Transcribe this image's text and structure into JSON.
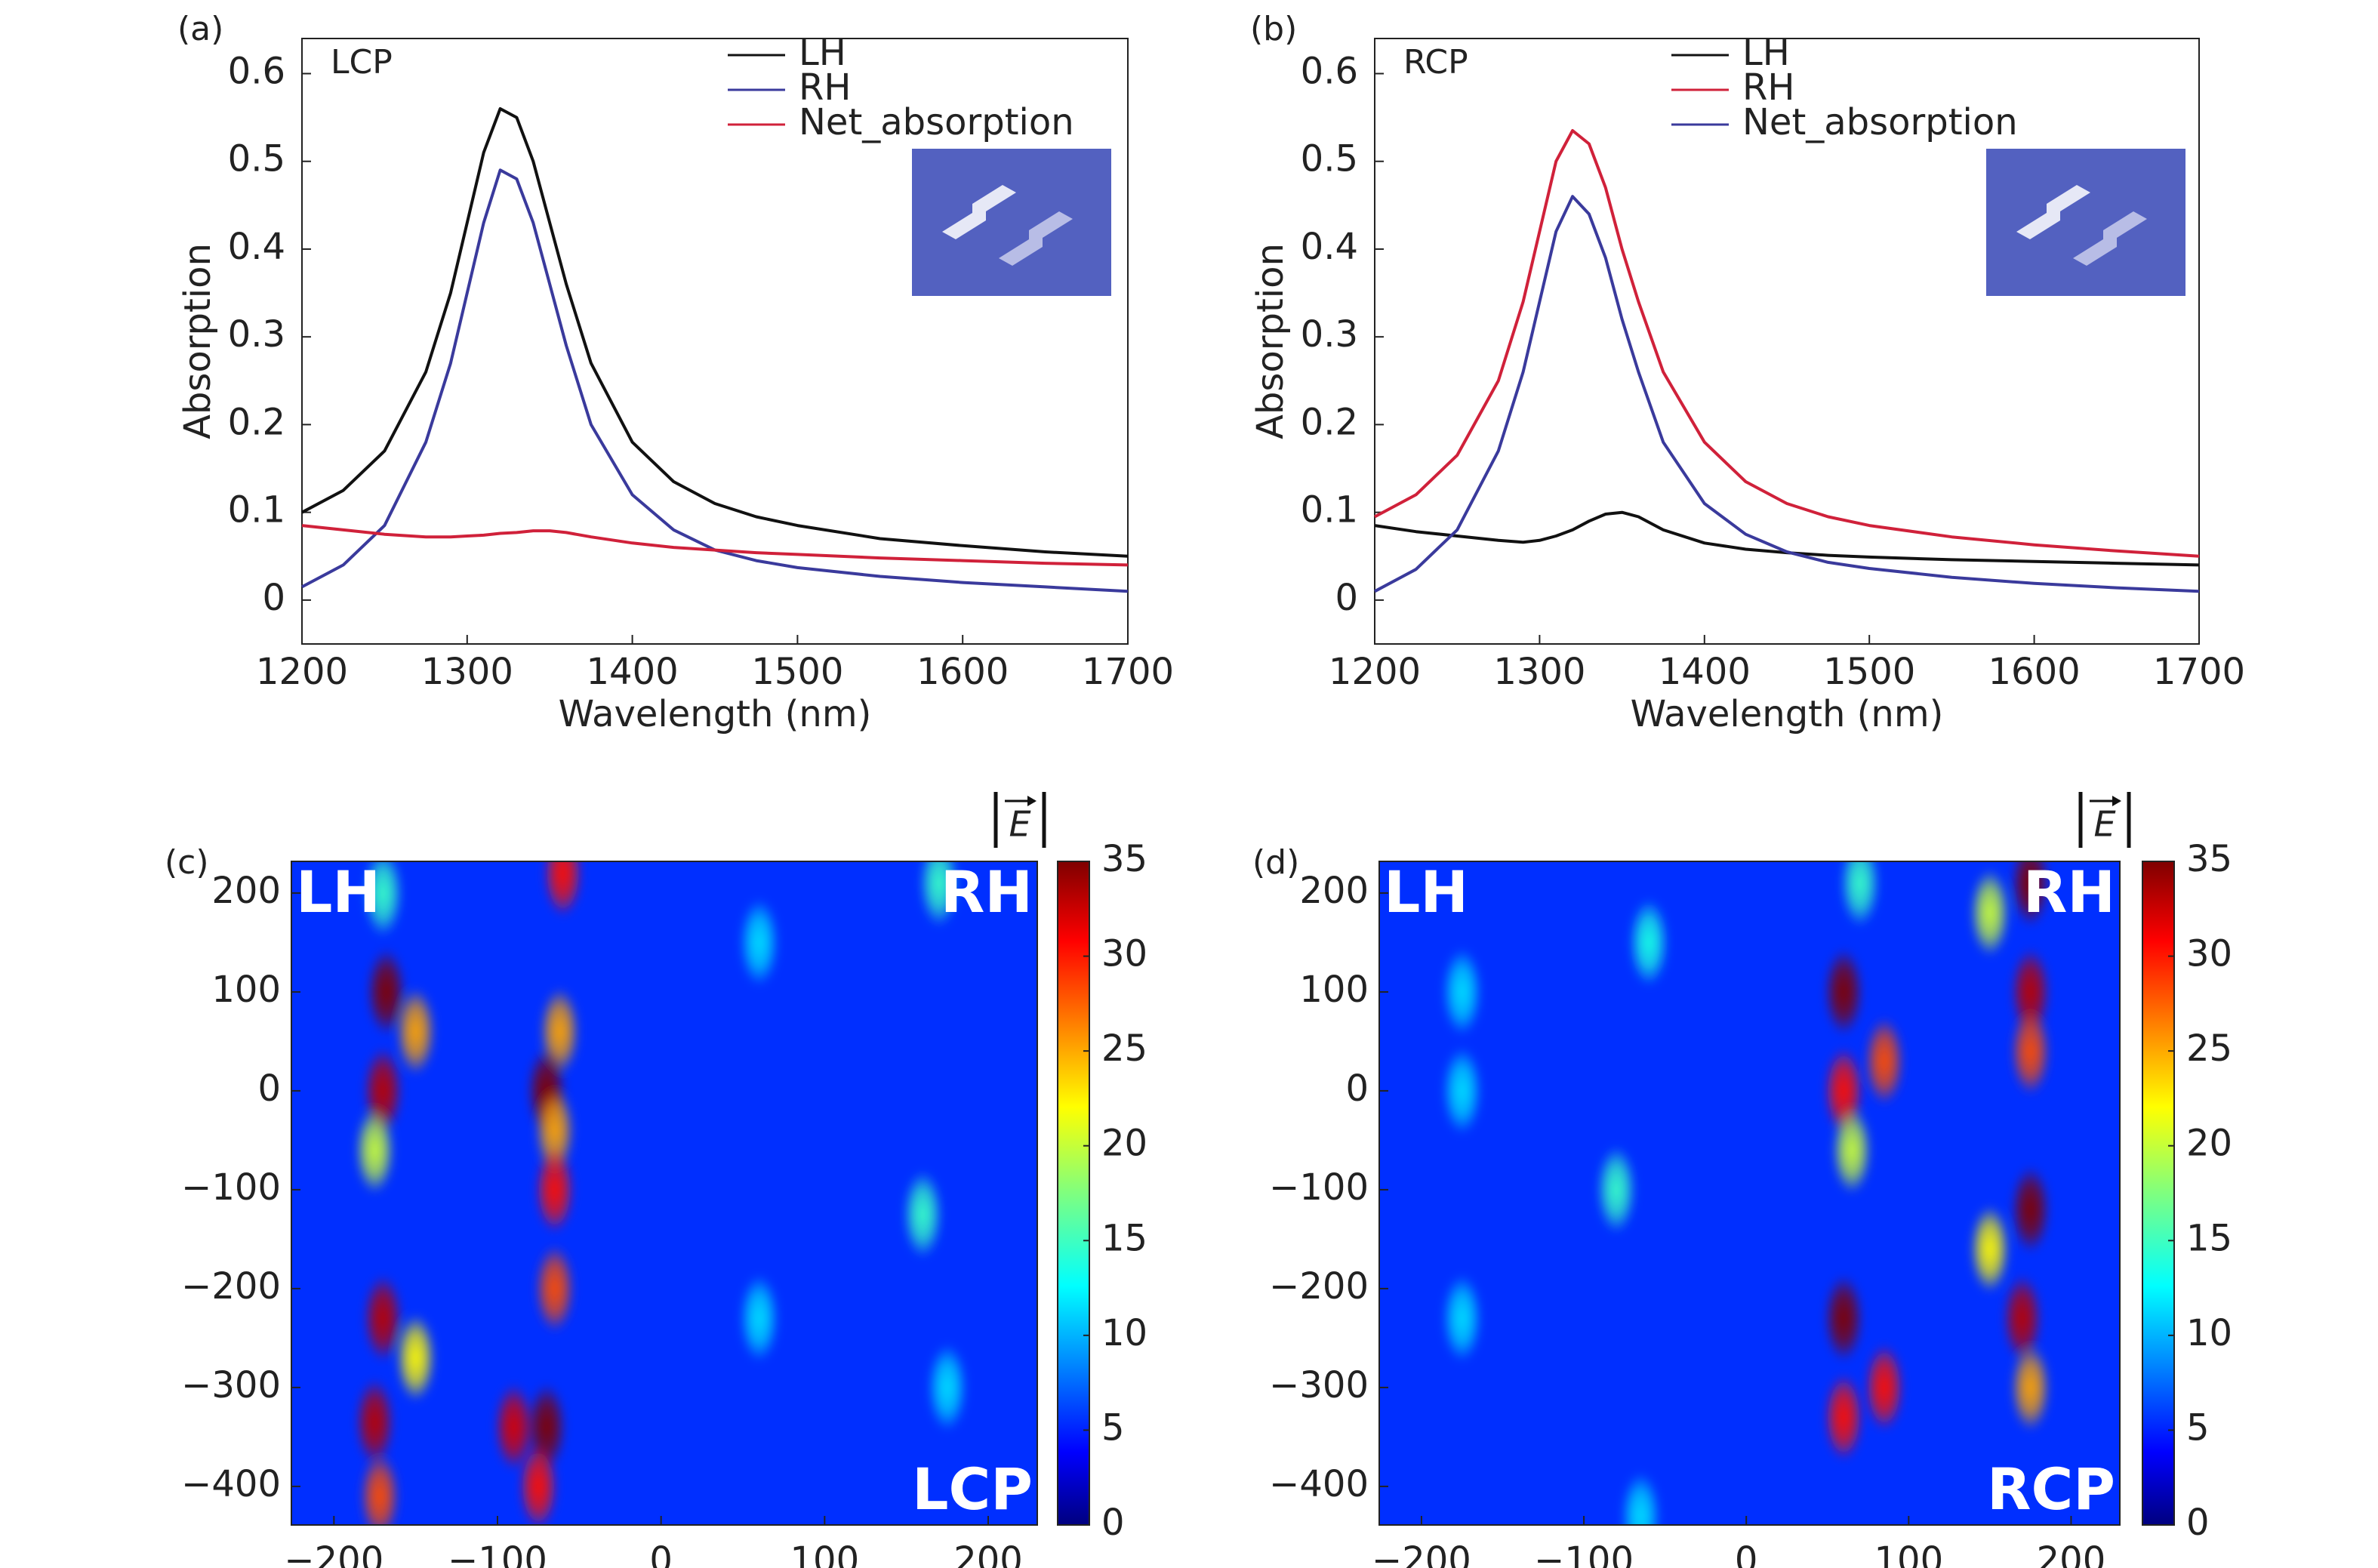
{
  "chart_data": [
    {
      "type": "line",
      "panel_label": "(a)",
      "annotation": "LCP",
      "xlabel": "Wavelength (nm)",
      "ylabel": "Absorption",
      "x": [
        1200,
        1225,
        1250,
        1275,
        1290,
        1300,
        1310,
        1320,
        1330,
        1340,
        1350,
        1360,
        1375,
        1400,
        1425,
        1450,
        1475,
        1500,
        1550,
        1600,
        1650,
        1700
      ],
      "series": [
        {
          "name": "LH",
          "color": "#111111",
          "values": [
            0.1,
            0.125,
            0.17,
            0.26,
            0.35,
            0.43,
            0.51,
            0.56,
            0.55,
            0.5,
            0.43,
            0.36,
            0.27,
            0.18,
            0.135,
            0.11,
            0.095,
            0.085,
            0.07,
            0.062,
            0.055,
            0.05
          ]
        },
        {
          "name": "RH",
          "color": "#3a3a9c",
          "values": [
            0.015,
            0.04,
            0.085,
            0.18,
            0.27,
            0.35,
            0.43,
            0.49,
            0.48,
            0.43,
            0.36,
            0.29,
            0.2,
            0.12,
            0.08,
            0.057,
            0.045,
            0.037,
            0.027,
            0.02,
            0.015,
            0.01
          ]
        },
        {
          "name": "Net_absorption",
          "color": "#d0213a",
          "values": [
            0.085,
            0.08,
            0.075,
            0.072,
            0.072,
            0.073,
            0.074,
            0.076,
            0.077,
            0.079,
            0.079,
            0.077,
            0.072,
            0.065,
            0.06,
            0.057,
            0.054,
            0.052,
            0.048,
            0.045,
            0.042,
            0.04
          ]
        }
      ],
      "xlim": [
        1200,
        1700
      ],
      "xticks": [
        1200,
        1300,
        1400,
        1500,
        1600,
        1700
      ],
      "ylim": [
        -0.05,
        0.64
      ],
      "yticks": [
        0,
        0.1,
        0.2,
        0.3,
        0.4,
        0.5,
        0.6
      ],
      "grid": false
    },
    {
      "type": "line",
      "panel_label": "(b)",
      "annotation": "RCP",
      "xlabel": "Wavelength (nm)",
      "ylabel": "Absorption",
      "x": [
        1200,
        1225,
        1250,
        1275,
        1290,
        1300,
        1310,
        1320,
        1330,
        1340,
        1350,
        1360,
        1375,
        1400,
        1425,
        1450,
        1475,
        1500,
        1550,
        1600,
        1650,
        1700
      ],
      "series": [
        {
          "name": "LH",
          "color": "#111111",
          "values": [
            0.085,
            0.078,
            0.073,
            0.068,
            0.066,
            0.068,
            0.073,
            0.08,
            0.09,
            0.098,
            0.1,
            0.095,
            0.08,
            0.065,
            0.058,
            0.054,
            0.051,
            0.049,
            0.046,
            0.044,
            0.042,
            0.04
          ]
        },
        {
          "name": "RH",
          "color": "#d0213a",
          "values": [
            0.095,
            0.12,
            0.165,
            0.25,
            0.34,
            0.42,
            0.5,
            0.535,
            0.52,
            0.47,
            0.4,
            0.34,
            0.26,
            0.18,
            0.135,
            0.11,
            0.095,
            0.085,
            0.072,
            0.063,
            0.056,
            0.05
          ]
        },
        {
          "name": "Net_absorption",
          "color": "#3a3a9c",
          "values": [
            0.01,
            0.035,
            0.08,
            0.17,
            0.26,
            0.34,
            0.42,
            0.46,
            0.44,
            0.39,
            0.32,
            0.26,
            0.18,
            0.11,
            0.075,
            0.055,
            0.043,
            0.036,
            0.026,
            0.019,
            0.014,
            0.01
          ]
        }
      ],
      "xlim": [
        1200,
        1700
      ],
      "xticks": [
        1200,
        1300,
        1400,
        1500,
        1600,
        1700
      ],
      "ylim": [
        -0.05,
        0.64
      ],
      "yticks": [
        0,
        0.1,
        0.2,
        0.3,
        0.4,
        0.5,
        0.6
      ],
      "grid": false
    },
    {
      "type": "heatmap",
      "panel_label": "(c)",
      "annotations": [
        "LH",
        "RH",
        "LCP"
      ],
      "colorbar_label": "E",
      "background_value": 6,
      "x": [
        -168,
        -150,
        -170,
        -175,
        -170,
        -150,
        -175,
        -172,
        -60,
        -62,
        -70,
        -65,
        -65,
        -65,
        -70,
        -90,
        -75,
        -170,
        60,
        60,
        160,
        170,
        175
      ],
      "y": [
        100,
        60,
        0,
        -60,
        -230,
        -270,
        -335,
        -410,
        220,
        60,
        0,
        -40,
        -100,
        -200,
        -340,
        -340,
        -400,
        200,
        150,
        -230,
        -125,
        210,
        -300
      ],
      "values": [
        35,
        25,
        33,
        20,
        33,
        22,
        33,
        28,
        30,
        25,
        35,
        25,
        30,
        28,
        35,
        32,
        30,
        15,
        12,
        12,
        15,
        15,
        12
      ],
      "xlim": [
        -226,
        230
      ],
      "xticks": [
        {
          "value": -200,
          "label": "−200"
        },
        {
          "value": -100,
          "label": "−100"
        },
        0,
        100,
        200
      ],
      "ylim": [
        -439,
        232
      ],
      "yticks": [
        200,
        100,
        0,
        {
          "value": -100,
          "label": "−100"
        },
        {
          "value": -200,
          "label": "−200"
        },
        {
          "value": -300,
          "label": "−300"
        },
        {
          "value": -400,
          "label": "−400"
        }
      ],
      "clim": [
        0,
        35
      ],
      "cticks": [
        0,
        5,
        10,
        15,
        20,
        25,
        30,
        35
      ]
    },
    {
      "type": "heatmap",
      "panel_label": "(d)",
      "annotations": [
        "LH",
        "RH",
        "RCP"
      ],
      "colorbar_label": "E",
      "background_value": 6,
      "x": [
        -175,
        -175,
        -175,
        -80,
        -60,
        -65,
        60,
        85,
        60,
        65,
        60,
        85,
        60,
        175,
        150,
        175,
        175,
        175,
        150,
        170,
        175,
        70
      ],
      "y": [
        100,
        0,
        -230,
        -100,
        150,
        -430,
        100,
        30,
        0,
        -60,
        -230,
        -300,
        -330,
        210,
        180,
        100,
        40,
        -120,
        -160,
        -230,
        -300,
        210
      ],
      "values": [
        12,
        12,
        12,
        15,
        14,
        12,
        35,
        28,
        30,
        20,
        35,
        30,
        30,
        35,
        20,
        33,
        28,
        35,
        22,
        33,
        25,
        15
      ],
      "xlim": [
        -226,
        230
      ],
      "xticks": [
        {
          "value": -200,
          "label": "−200"
        },
        {
          "value": -100,
          "label": "−100"
        },
        0,
        100,
        200
      ],
      "ylim": [
        -439,
        232
      ],
      "yticks": [
        200,
        100,
        0,
        {
          "value": -100,
          "label": "−100"
        },
        {
          "value": -200,
          "label": "−200"
        },
        {
          "value": -300,
          "label": "−300"
        },
        {
          "value": -400,
          "label": "−400"
        }
      ],
      "clim": [
        0,
        35
      ],
      "cticks": [
        0,
        5,
        10,
        15,
        20,
        25,
        30,
        35
      ]
    }
  ]
}
